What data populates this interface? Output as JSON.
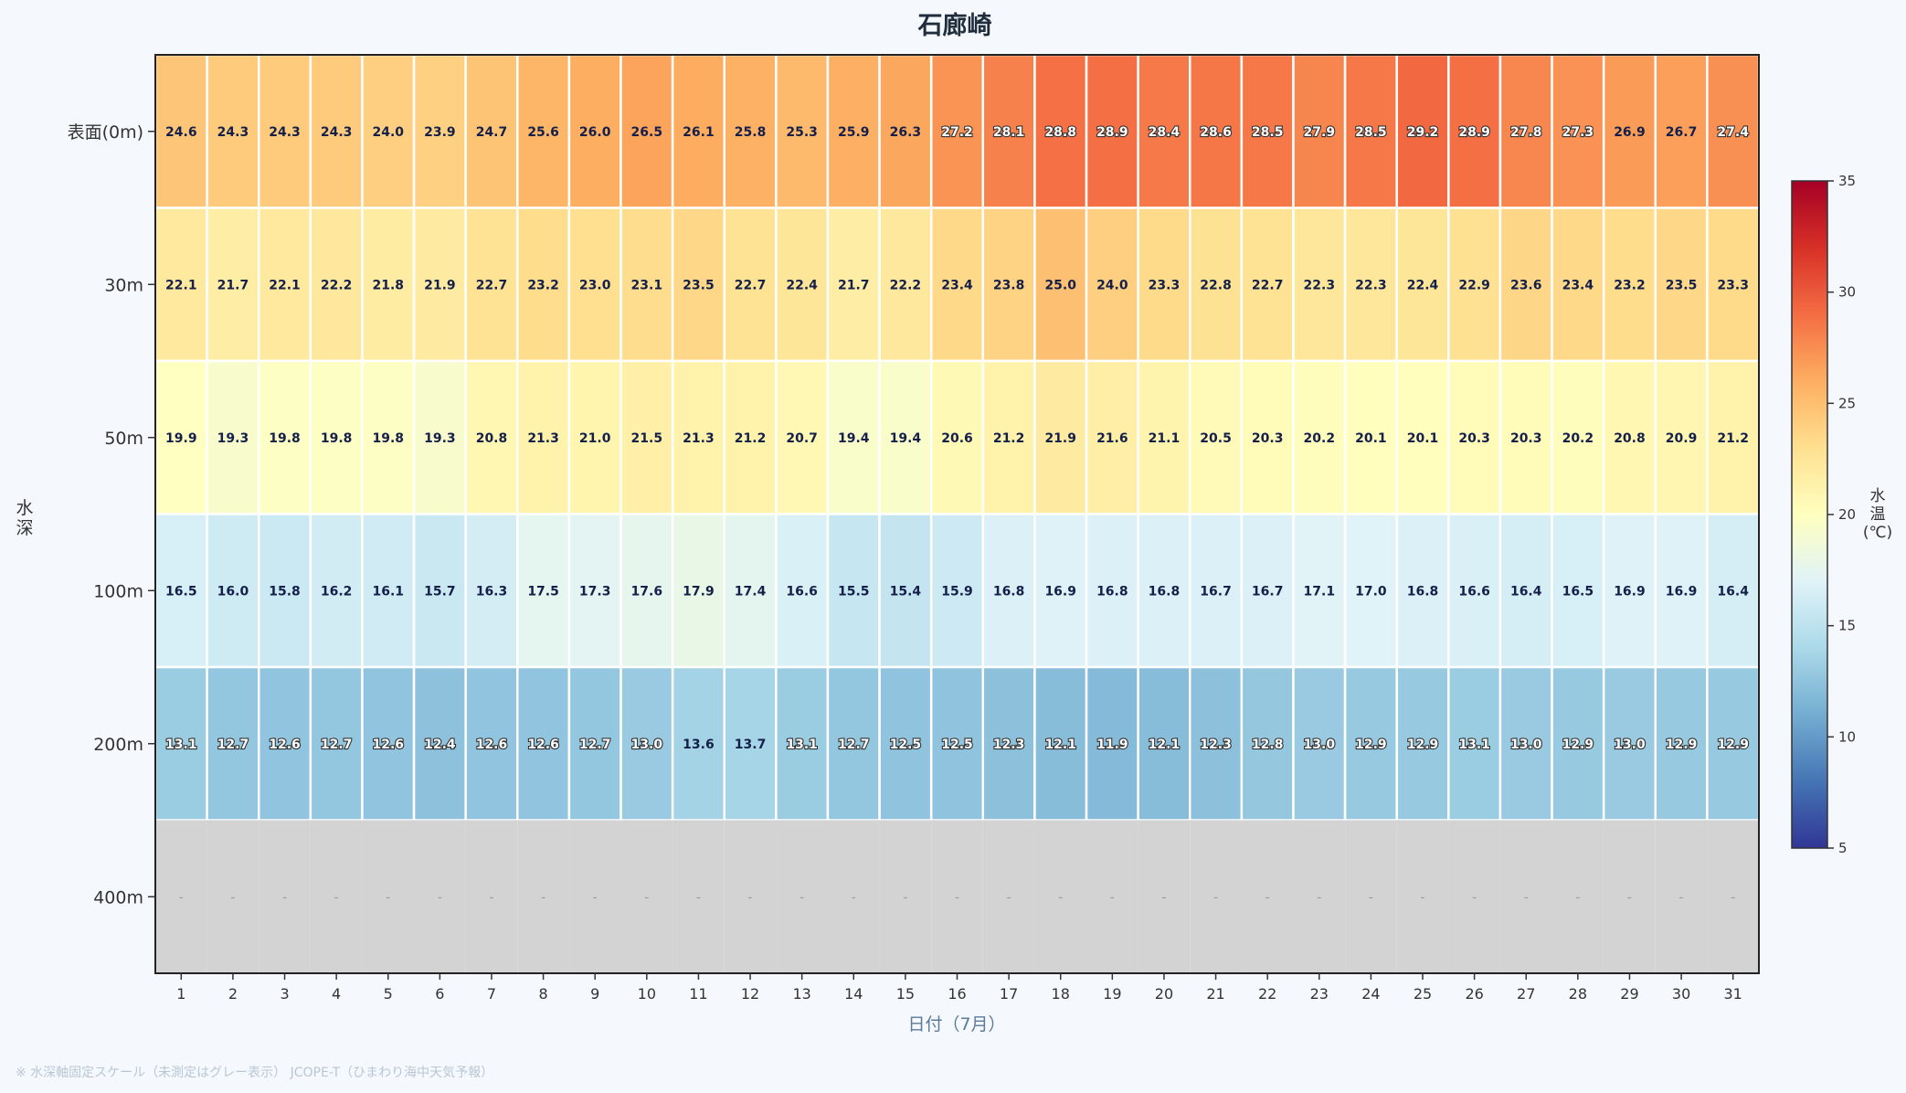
{
  "chart_data": {
    "type": "heatmap",
    "title": "石廊崎",
    "xlabel": "日付（7月）",
    "ylabel": "水深",
    "colorbar_label": "水温(℃)",
    "colorbar_range": [
      5,
      35
    ],
    "colorbar_ticks": [
      5,
      10,
      15,
      20,
      25,
      30,
      35
    ],
    "colorscale": "RdYlBu_r",
    "missing_color": "#d3d3d3",
    "missing_label": "-",
    "x": [
      "1",
      "2",
      "3",
      "4",
      "5",
      "6",
      "7",
      "8",
      "9",
      "10",
      "11",
      "12",
      "13",
      "14",
      "15",
      "16",
      "17",
      "18",
      "19",
      "20",
      "21",
      "22",
      "23",
      "24",
      "25",
      "26",
      "27",
      "28",
      "29",
      "30",
      "31"
    ],
    "y": [
      "表面(0m)",
      "30m",
      "50m",
      "100m",
      "200m",
      "400m"
    ],
    "values": [
      [
        24.6,
        24.3,
        24.3,
        24.3,
        24.0,
        23.9,
        24.7,
        25.6,
        26.0,
        26.5,
        26.1,
        25.8,
        25.3,
        25.9,
        26.3,
        27.2,
        28.1,
        28.8,
        28.9,
        28.4,
        28.6,
        28.5,
        27.9,
        28.5,
        29.2,
        28.9,
        27.8,
        27.3,
        26.9,
        26.7,
        27.4
      ],
      [
        22.1,
        21.7,
        22.1,
        22.2,
        21.8,
        21.9,
        22.7,
        23.2,
        23.0,
        23.1,
        23.5,
        22.7,
        22.4,
        21.7,
        22.2,
        23.4,
        23.8,
        25.0,
        24.0,
        23.3,
        22.8,
        22.7,
        22.3,
        22.3,
        22.4,
        22.9,
        23.6,
        23.4,
        23.2,
        23.5,
        23.3
      ],
      [
        19.9,
        19.3,
        19.8,
        19.8,
        19.8,
        19.3,
        20.8,
        21.3,
        21.0,
        21.5,
        21.3,
        21.2,
        20.7,
        19.4,
        19.4,
        20.6,
        21.2,
        21.9,
        21.6,
        21.1,
        20.5,
        20.3,
        20.2,
        20.1,
        20.1,
        20.3,
        20.3,
        20.2,
        20.8,
        20.9,
        21.2
      ],
      [
        16.5,
        16.0,
        15.8,
        16.2,
        16.1,
        15.7,
        16.3,
        17.5,
        17.3,
        17.6,
        17.9,
        17.4,
        16.6,
        15.5,
        15.4,
        15.9,
        16.8,
        16.9,
        16.8,
        16.8,
        16.7,
        16.7,
        17.1,
        17.0,
        16.8,
        16.6,
        16.4,
        16.5,
        16.9,
        16.9,
        16.4
      ],
      [
        13.1,
        12.7,
        12.6,
        12.7,
        12.6,
        12.4,
        12.6,
        12.6,
        12.7,
        13.0,
        13.6,
        13.7,
        13.1,
        12.7,
        12.5,
        12.5,
        12.3,
        12.1,
        11.9,
        12.1,
        12.3,
        12.8,
        13.0,
        12.9,
        12.9,
        13.1,
        13.0,
        12.9,
        13.0,
        12.9,
        12.9
      ],
      [
        null,
        null,
        null,
        null,
        null,
        null,
        null,
        null,
        null,
        null,
        null,
        null,
        null,
        null,
        null,
        null,
        null,
        null,
        null,
        null,
        null,
        null,
        null,
        null,
        null,
        null,
        null,
        null,
        null,
        null,
        null
      ]
    ],
    "grid": false,
    "legend": "right"
  },
  "footnote": "※ 水深軸固定スケール（未測定はグレー表示） JCOPE-T（ひまわり海中天気予報）"
}
